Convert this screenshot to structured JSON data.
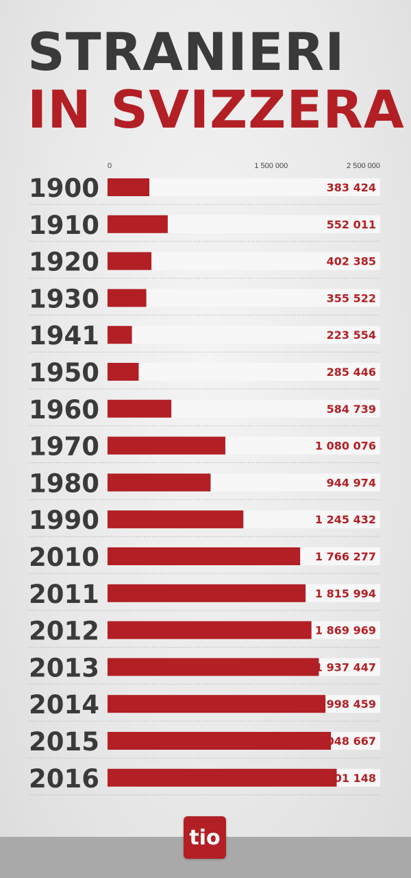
{
  "header": {
    "title_line1": "STRANIERI",
    "title_line2": "IN SVIZZERA"
  },
  "logo": {
    "text": "tio"
  },
  "colors": {
    "bar": "#b21f25",
    "title_dark": "#3a3a3a",
    "value_text": "#b21f25",
    "track": "#f7f7f7"
  },
  "chart_data": {
    "type": "bar",
    "orientation": "horizontal",
    "title": "STRANIERI IN SVIZZERA",
    "xlabel": "",
    "ylabel": "",
    "xlim": [
      0,
      2500000
    ],
    "tick_values": [
      0,
      1500000,
      2500000
    ],
    "tick_labels": [
      "0",
      "1 500 000",
      "2 500 000"
    ],
    "grid": false,
    "categories": [
      "1900",
      "1910",
      "1920",
      "1930",
      "1941",
      "1950",
      "1960",
      "1970",
      "1980",
      "1990",
      "2010",
      "2011",
      "2012",
      "2013",
      "2014",
      "2015",
      "2016"
    ],
    "values": [
      383424,
      552011,
      402385,
      355522,
      223554,
      285446,
      584739,
      1080076,
      944974,
      1245432,
      1766277,
      1815994,
      1869969,
      1937447,
      1998459,
      2048667,
      2101148
    ],
    "value_labels": [
      "383 424",
      "552 011",
      "402 385",
      "355 522",
      "223 554",
      "285 446",
      "584 739",
      "1 080 076",
      "944 974",
      "1 245 432",
      "1 766 277",
      "1 815 994",
      "1 869 969",
      "1 937 447",
      "1 998 459",
      "2 048 667",
      "2 101 148"
    ]
  }
}
